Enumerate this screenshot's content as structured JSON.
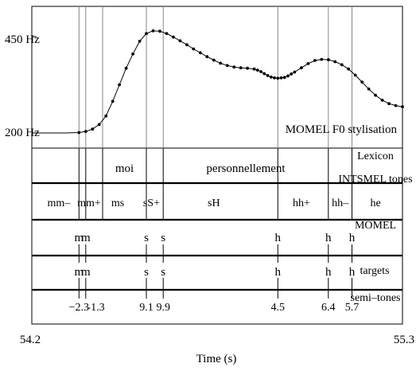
{
  "chart_data": {
    "type": "line",
    "title": "",
    "x_label": "Time (s)",
    "x_range": [
      54.2,
      55.3
    ],
    "x_tick_labels": [
      "54.2",
      "55.3"
    ],
    "y_tick_labels": [
      "450 Hz",
      "200 Hz"
    ],
    "y_tick_values": [
      450,
      200
    ],
    "panel_labels": {
      "f0": "MOMEL F0 stylisation",
      "lexicon": "Lexicon",
      "intsmel": "INTSMEL tones",
      "momel": "MOMEL",
      "targets": "targets",
      "semitones": "semi–tones"
    },
    "boundaries_s": [
      54.34,
      54.36,
      54.41,
      54.54,
      54.59,
      54.93,
      55.08,
      55.15
    ],
    "f0_curve": {
      "x": [
        54.2,
        54.25,
        54.3,
        54.34,
        54.36,
        54.38,
        54.4,
        54.42,
        54.44,
        54.46,
        54.48,
        54.5,
        54.52,
        54.54,
        54.56,
        54.58,
        54.6,
        54.62,
        54.64,
        54.66,
        54.68,
        54.7,
        54.72,
        54.74,
        54.76,
        54.78,
        54.8,
        54.82,
        54.84,
        54.86,
        54.87,
        54.88,
        54.89,
        54.9,
        54.91,
        54.92,
        54.93,
        54.94,
        54.95,
        54.96,
        54.97,
        54.98,
        55.0,
        55.02,
        55.04,
        55.06,
        55.08,
        55.1,
        55.12,
        55.14,
        55.16,
        55.18,
        55.2,
        55.22,
        55.24,
        55.26,
        55.28,
        55.3
      ],
      "y": [
        200,
        200,
        200,
        201,
        204,
        210,
        222,
        244,
        282,
        325,
        368,
        405,
        438,
        458,
        465,
        464,
        458,
        449,
        439,
        429,
        418,
        408,
        398,
        389,
        381,
        375,
        371,
        369,
        368,
        366,
        363,
        359,
        354,
        349,
        345,
        343,
        342,
        343,
        344,
        348,
        353,
        358,
        369,
        380,
        388,
        391,
        390,
        385,
        377,
        366,
        350,
        332,
        314,
        298,
        285,
        276,
        271,
        268
      ]
    },
    "lexicon_words": [
      {
        "text": "moi",
        "x": 54.475
      },
      {
        "text": "personnellement",
        "x": 54.835
      }
    ],
    "intsmel_tones": [
      {
        "text": "mm–",
        "x": 54.28
      },
      {
        "text": "mm+",
        "x": 54.37
      },
      {
        "text": "ms",
        "x": 54.455
      },
      {
        "text": "sS+",
        "x": 54.555
      },
      {
        "text": "sH",
        "x": 54.74
      },
      {
        "text": "hh+",
        "x": 55.0
      },
      {
        "text": "hh–",
        "x": 55.115
      },
      {
        "text": "he",
        "x": 55.22
      }
    ],
    "momel_targets": [
      {
        "text": "m",
        "x": 54.34
      },
      {
        "text": "m",
        "x": 54.36
      },
      {
        "text": "s",
        "x": 54.54
      },
      {
        "text": "s",
        "x": 54.59
      },
      {
        "text": "h",
        "x": 54.93
      },
      {
        "text": "h",
        "x": 55.08
      },
      {
        "text": "h",
        "x": 55.15
      }
    ],
    "targets": [
      {
        "text": "m",
        "x": 54.34
      },
      {
        "text": "m",
        "x": 54.36
      },
      {
        "text": "s",
        "x": 54.54
      },
      {
        "text": "s",
        "x": 54.59
      },
      {
        "text": "h",
        "x": 54.93
      },
      {
        "text": "h",
        "x": 55.08
      },
      {
        "text": "h",
        "x": 55.15
      }
    ],
    "semitones": [
      {
        "text": "−2.3",
        "x": 54.34
      },
      {
        "text": "-1.3",
        "x": 54.39
      },
      {
        "text": "9.1",
        "x": 54.54
      },
      {
        "text": "9.9",
        "x": 54.59
      },
      {
        "text": "4.5",
        "x": 54.93
      },
      {
        "text": "6.4",
        "x": 55.08
      },
      {
        "text": "5.7",
        "x": 55.15
      }
    ]
  }
}
